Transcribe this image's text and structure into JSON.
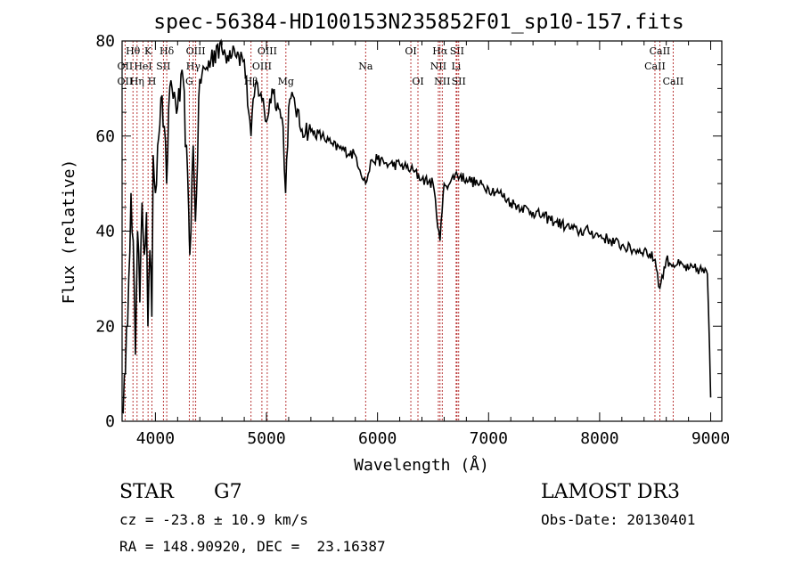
{
  "chart_data": {
    "type": "line",
    "title": "spec-56384-HD100153N235852F01_sp10-157.fits",
    "xlabel": "Wavelength (Å)",
    "ylabel": "Flux (relative)",
    "xlim": [
      3700,
      9100
    ],
    "ylim": [
      0,
      80
    ],
    "xticks": [
      4000,
      5000,
      6000,
      7000,
      8000,
      9000
    ],
    "yticks": [
      0,
      20,
      40,
      60,
      80
    ],
    "series": [
      {
        "name": "spectrum",
        "x": [
          3700,
          3730,
          3760,
          3780,
          3800,
          3820,
          3840,
          3860,
          3880,
          3900,
          3920,
          3933,
          3950,
          3968,
          3980,
          4000,
          4020,
          4050,
          4080,
          4101,
          4120,
          4150,
          4200,
          4250,
          4300,
          4310,
          4340,
          4360,
          4400,
          4450,
          4500,
          4550,
          4600,
          4650,
          4700,
          4750,
          4800,
          4861,
          4900,
          4950,
          5000,
          5050,
          5100,
          5150,
          5172,
          5200,
          5250,
          5300,
          5400,
          5500,
          5600,
          5700,
          5800,
          5893,
          5950,
          6000,
          6100,
          6200,
          6300,
          6400,
          6500,
          6563,
          6600,
          6650,
          6700,
          6800,
          6900,
          7000,
          7100,
          7200,
          7300,
          7400,
          7500,
          7600,
          7700,
          7800,
          7900,
          8000,
          8100,
          8200,
          8300,
          8400,
          8500,
          8542,
          8600,
          8662,
          8700,
          8800,
          8900,
          8970,
          8990,
          9000
        ],
        "values": [
          2,
          10,
          30,
          48,
          38,
          14,
          40,
          25,
          46,
          35,
          44,
          20,
          36,
          22,
          56,
          48,
          58,
          68,
          62,
          50,
          66,
          70,
          66,
          72,
          44,
          35,
          58,
          42,
          72,
          74,
          76,
          79,
          78,
          77,
          79,
          77,
          76,
          60,
          71,
          69,
          63,
          70,
          67,
          62,
          48,
          66,
          68,
          62,
          61,
          60,
          58,
          57,
          56,
          50,
          55,
          55,
          54,
          54,
          53,
          51,
          50,
          38,
          50,
          50,
          52,
          51,
          50,
          49,
          48,
          46,
          45,
          44,
          43,
          42,
          41,
          40,
          40,
          39,
          38,
          37,
          36,
          36,
          34,
          28,
          34,
          33,
          33,
          32,
          32,
          31,
          15,
          5
        ]
      }
    ],
    "spectral_lines": [
      {
        "label": "Hθ",
        "x": 3798,
        "row": 1
      },
      {
        "label": "OII",
        "x": 3727,
        "row": 2
      },
      {
        "label": "OII",
        "x": 3727,
        "row": 3
      },
      {
        "label": "K",
        "x": 3934,
        "row": 1
      },
      {
        "label": "H",
        "x": 3969,
        "row": 3
      },
      {
        "label": "HeI",
        "x": 3889,
        "row": 2
      },
      {
        "label": "Hη",
        "x": 3835,
        "row": 3
      },
      {
        "label": "Hδ",
        "x": 4102,
        "row": 1
      },
      {
        "label": "SII",
        "x": 4072,
        "row": 2
      },
      {
        "label": "OIII",
        "x": 4363,
        "row": 1
      },
      {
        "label": "Hγ",
        "x": 4341,
        "row": 2
      },
      {
        "label": "G",
        "x": 4305,
        "row": 3
      },
      {
        "label": "OIII",
        "x": 5007,
        "row": 1
      },
      {
        "label": "OIII",
        "x": 4959,
        "row": 2
      },
      {
        "label": "Hβ",
        "x": 4861,
        "row": 3
      },
      {
        "label": "Mg",
        "x": 5175,
        "row": 3
      },
      {
        "label": "Na",
        "x": 5893,
        "row": 2
      },
      {
        "label": "OI",
        "x": 6300,
        "row": 1
      },
      {
        "label": "OI",
        "x": 6364,
        "row": 3
      },
      {
        "label": "Hα",
        "x": 6563,
        "row": 1
      },
      {
        "label": "SII",
        "x": 6716,
        "row": 1
      },
      {
        "label": "NII",
        "x": 6548,
        "row": 2
      },
      {
        "label": "Li",
        "x": 6708,
        "row": 2
      },
      {
        "label": "NII",
        "x": 6583,
        "row": 3
      },
      {
        "label": "SII",
        "x": 6731,
        "row": 3
      },
      {
        "label": "CaII",
        "x": 8542,
        "row": 1
      },
      {
        "label": "CaII",
        "x": 8498,
        "row": 2
      },
      {
        "label": "CaII",
        "x": 8662,
        "row": 3
      }
    ]
  },
  "info": {
    "class": "STAR",
    "subclass": "G7",
    "cz": "cz = -23.8 ± 10.9 km/s",
    "radec": "RA = 148.90920, DEC =  23.16387",
    "survey": "LAMOST DR3",
    "obsdate": "Obs-Date: 20130401"
  },
  "colors": {
    "line_marker": "#b22222",
    "spectrum": "#000000"
  }
}
